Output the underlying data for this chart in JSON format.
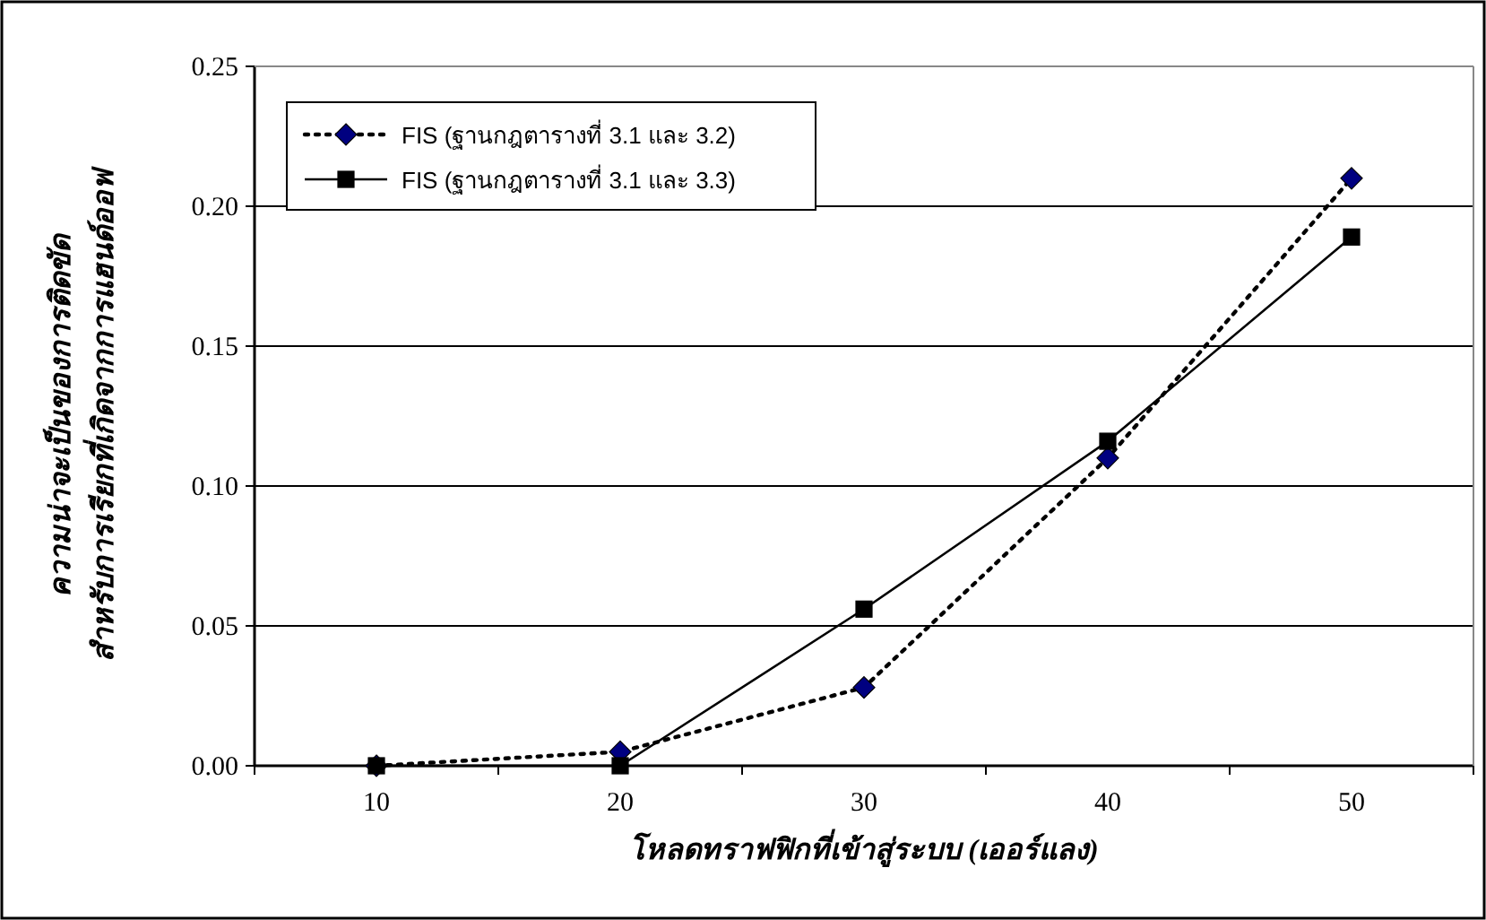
{
  "chart_data": {
    "type": "line",
    "xlabel": "โหลดทราฟฟิกที่เข้าสู่ระบบ (เออร์แลง)",
    "ylabel": "ความน่าจะเป็นของการติดขัด\nสำหรับการเรียกที่เกิดจากการแฮนด์ออฟ",
    "categories": [
      "10",
      "20",
      "30",
      "40",
      "50"
    ],
    "series": [
      {
        "name": "FIS (ฐานกฎตารางที่ 3.1 และ 3.2)",
        "color": "#000080",
        "marker": "diamond",
        "line_style": "dotted",
        "values": [
          0,
          0.005,
          0.028,
          0.11,
          0.21
        ]
      },
      {
        "name": "FIS (ฐานกฎตารางที่ 3.1 และ 3.3)",
        "color": "#000000",
        "marker": "square",
        "line_style": "solid",
        "values": [
          0,
          0,
          0.056,
          0.116,
          0.189
        ]
      }
    ],
    "ylim": [
      0,
      0.25
    ],
    "yticks": [
      {
        "value": 0,
        "label": "0.00"
      },
      {
        "value": 0.05,
        "label": "0.05"
      },
      {
        "value": 0.1,
        "label": "0.10"
      },
      {
        "value": 0.15,
        "label": "0.15"
      },
      {
        "value": 0.2,
        "label": "0.20"
      },
      {
        "value": 0.25,
        "label": "0.25"
      }
    ],
    "grid": "y",
    "legend": "top left"
  }
}
